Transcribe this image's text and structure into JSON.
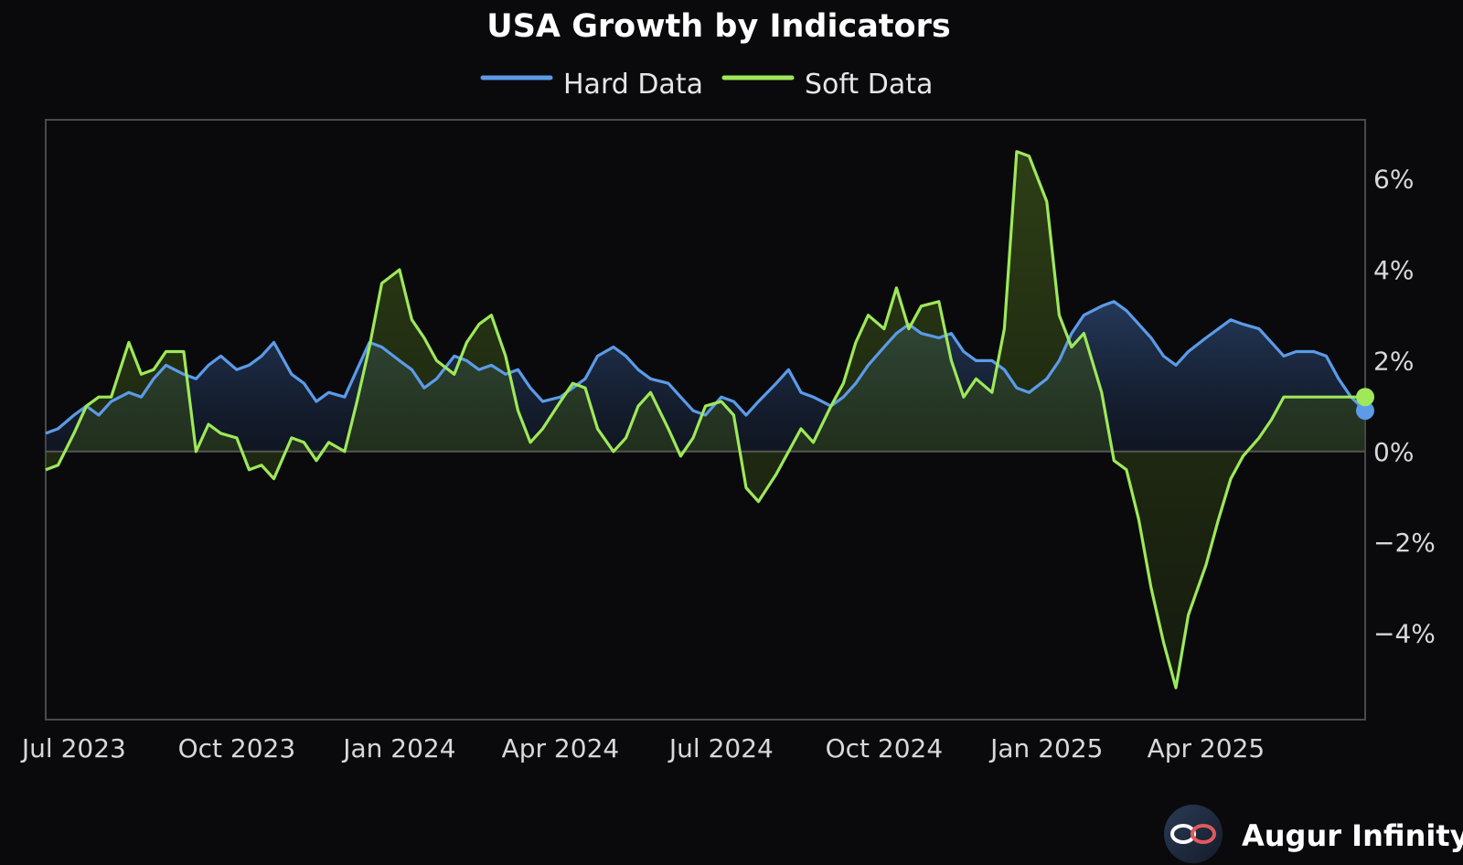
{
  "chart_data": {
    "type": "line",
    "title": "USA Growth by Indicators",
    "xlabel": "",
    "ylabel": "",
    "x_ticks": [
      "Jul 2023",
      "Oct 2023",
      "Jan 2024",
      "Apr 2024",
      "Jul 2024",
      "Oct 2024",
      "Jan 2025",
      "Apr 2025"
    ],
    "x_tick_dates": [
      "2023-07",
      "2023-10",
      "2024-01",
      "2024-04",
      "2024-07",
      "2024-10",
      "2025-01",
      "2025-04"
    ],
    "y_ticks": [
      "6%",
      "4%",
      "2%",
      "0%",
      "−2%",
      "−4%"
    ],
    "y_tick_values": [
      6,
      4,
      2,
      0,
      -2,
      -4
    ],
    "ylim": [
      -5.9,
      7.3
    ],
    "xlim": [
      "2023-06-15",
      "2025-06-30"
    ],
    "legend_position": "top-center",
    "grid": false,
    "zero_line": true,
    "series": [
      {
        "name": "Hard Data",
        "color": "#5b9be8",
        "x": [
          "2023-06-15",
          "2023-06-22",
          "2023-07-01",
          "2023-07-08",
          "2023-07-15",
          "2023-07-22",
          "2023-08-01",
          "2023-08-08",
          "2023-08-15",
          "2023-08-22",
          "2023-09-01",
          "2023-09-08",
          "2023-09-15",
          "2023-09-22",
          "2023-10-01",
          "2023-10-08",
          "2023-10-15",
          "2023-10-22",
          "2023-11-01",
          "2023-11-08",
          "2023-11-15",
          "2023-11-22",
          "2023-12-01",
          "2023-12-08",
          "2023-12-15",
          "2023-12-22",
          "2024-01-01",
          "2024-01-08",
          "2024-01-15",
          "2024-01-22",
          "2024-02-01",
          "2024-02-08",
          "2024-02-15",
          "2024-02-22",
          "2024-03-01",
          "2024-03-08",
          "2024-03-15",
          "2024-03-22",
          "2024-04-01",
          "2024-04-08",
          "2024-04-15",
          "2024-04-22",
          "2024-05-01",
          "2024-05-08",
          "2024-05-15",
          "2024-05-22",
          "2024-06-01",
          "2024-06-08",
          "2024-06-15",
          "2024-06-22",
          "2024-07-01",
          "2024-07-08",
          "2024-07-15",
          "2024-07-22",
          "2024-08-01",
          "2024-08-08",
          "2024-08-15",
          "2024-08-22",
          "2024-09-01",
          "2024-09-08",
          "2024-09-15",
          "2024-09-22",
          "2024-10-01",
          "2024-10-08",
          "2024-10-15",
          "2024-10-22",
          "2024-11-01",
          "2024-11-08",
          "2024-11-15",
          "2024-11-22",
          "2024-12-01",
          "2024-12-08",
          "2024-12-15",
          "2024-12-22",
          "2025-01-01",
          "2025-01-08",
          "2025-01-15",
          "2025-01-22",
          "2025-02-01",
          "2025-02-08",
          "2025-02-15",
          "2025-02-22",
          "2025-03-01",
          "2025-03-08",
          "2025-03-15",
          "2025-03-22",
          "2025-04-01",
          "2025-04-08",
          "2025-04-15",
          "2025-04-22",
          "2025-05-01",
          "2025-05-08",
          "2025-05-15",
          "2025-05-22",
          "2025-06-01",
          "2025-06-08",
          "2025-06-15",
          "2025-06-22",
          "2025-06-30"
        ],
        "values": [
          0.4,
          0.5,
          0.8,
          1.0,
          0.8,
          1.1,
          1.3,
          1.2,
          1.6,
          1.9,
          1.7,
          1.6,
          1.9,
          2.1,
          1.8,
          1.9,
          2.1,
          2.4,
          1.7,
          1.5,
          1.1,
          1.3,
          1.2,
          1.8,
          2.4,
          2.3,
          2.0,
          1.8,
          1.4,
          1.6,
          2.1,
          2.0,
          1.8,
          1.9,
          1.7,
          1.8,
          1.4,
          1.1,
          1.2,
          1.4,
          1.6,
          2.1,
          2.3,
          2.1,
          1.8,
          1.6,
          1.5,
          1.2,
          0.9,
          0.8,
          1.2,
          1.1,
          0.8,
          1.1,
          1.5,
          1.8,
          1.3,
          1.2,
          1.0,
          1.2,
          1.5,
          1.9,
          2.3,
          2.6,
          2.8,
          2.6,
          2.5,
          2.6,
          2.2,
          2.0,
          2.0,
          1.8,
          1.4,
          1.3,
          1.6,
          2.0,
          2.6,
          3.0,
          3.2,
          3.3,
          3.1,
          2.8,
          2.5,
          2.1,
          1.9,
          2.2,
          2.5,
          2.7,
          2.9,
          2.8,
          2.7,
          2.4,
          2.1,
          2.2,
          2.2,
          2.1,
          1.6,
          1.2,
          0.9
        ]
      },
      {
        "name": "Soft Data",
        "color": "#9ee85a",
        "x": [
          "2023-06-15",
          "2023-06-22",
          "2023-07-01",
          "2023-07-08",
          "2023-07-15",
          "2023-07-22",
          "2023-08-01",
          "2023-08-08",
          "2023-08-15",
          "2023-08-22",
          "2023-09-01",
          "2023-09-08",
          "2023-09-15",
          "2023-09-22",
          "2023-10-01",
          "2023-10-08",
          "2023-10-15",
          "2023-10-22",
          "2023-11-01",
          "2023-11-08",
          "2023-11-15",
          "2023-11-22",
          "2023-12-01",
          "2023-12-08",
          "2023-12-15",
          "2023-12-22",
          "2024-01-01",
          "2024-01-08",
          "2024-01-15",
          "2024-01-22",
          "2024-02-01",
          "2024-02-08",
          "2024-02-15",
          "2024-02-22",
          "2024-03-01",
          "2024-03-08",
          "2024-03-15",
          "2024-03-22",
          "2024-04-01",
          "2024-04-08",
          "2024-04-15",
          "2024-04-22",
          "2024-05-01",
          "2024-05-08",
          "2024-05-15",
          "2024-05-22",
          "2024-06-01",
          "2024-06-08",
          "2024-06-15",
          "2024-06-22",
          "2024-07-01",
          "2024-07-08",
          "2024-07-15",
          "2024-07-22",
          "2024-08-01",
          "2024-08-08",
          "2024-08-15",
          "2024-08-22",
          "2024-09-01",
          "2024-09-08",
          "2024-09-15",
          "2024-09-22",
          "2024-10-01",
          "2024-10-08",
          "2024-10-15",
          "2024-10-22",
          "2024-11-01",
          "2024-11-08",
          "2024-11-15",
          "2024-11-22",
          "2024-12-01",
          "2024-12-08",
          "2024-12-15",
          "2024-12-22",
          "2025-01-01",
          "2025-01-08",
          "2025-01-15",
          "2025-01-22",
          "2025-02-01",
          "2025-02-08",
          "2025-02-15",
          "2025-02-22",
          "2025-03-01",
          "2025-03-08",
          "2025-03-15",
          "2025-03-22",
          "2025-04-01",
          "2025-04-08",
          "2025-04-15",
          "2025-04-22",
          "2025-05-01",
          "2025-05-08",
          "2025-05-15",
          "2025-05-22",
          "2025-06-01",
          "2025-06-08",
          "2025-06-15",
          "2025-06-22",
          "2025-06-30"
        ],
        "values": [
          -0.4,
          -0.3,
          0.4,
          1.0,
          1.2,
          1.2,
          2.4,
          1.7,
          1.8,
          2.2,
          2.2,
          0.0,
          0.6,
          0.4,
          0.3,
          -0.4,
          -0.3,
          -0.6,
          0.3,
          0.2,
          -0.2,
          0.2,
          0.0,
          1.1,
          2.3,
          3.7,
          4.0,
          2.9,
          2.5,
          2.0,
          1.7,
          2.4,
          2.8,
          3.0,
          2.1,
          0.9,
          0.2,
          0.5,
          1.1,
          1.5,
          1.4,
          0.5,
          0.0,
          0.3,
          1.0,
          1.3,
          0.5,
          -0.1,
          0.3,
          1.0,
          1.1,
          0.8,
          -0.8,
          -1.1,
          -0.5,
          0.0,
          0.5,
          0.2,
          1.0,
          1.5,
          2.4,
          3.0,
          2.7,
          3.6,
          2.7,
          3.2,
          3.3,
          2.0,
          1.2,
          1.6,
          1.3,
          2.7,
          6.6,
          6.5,
          5.5,
          3.0,
          2.3,
          2.6,
          1.3,
          -0.2,
          -0.4,
          -1.5,
          -3.0,
          -4.2,
          -5.2,
          -3.6,
          -2.5,
          -1.5,
          -0.6,
          -0.1,
          0.3,
          0.7,
          1.2,
          1.2,
          1.2,
          1.2,
          1.2,
          1.2,
          1.2
        ]
      }
    ]
  },
  "brand": {
    "name": "Augur Infinity",
    "logo_icon": "infinity-icon"
  },
  "colors": {
    "background": "#0a0a0c",
    "plot_border": "#4a4a4a",
    "zero_line": "#4a4a4a"
  }
}
